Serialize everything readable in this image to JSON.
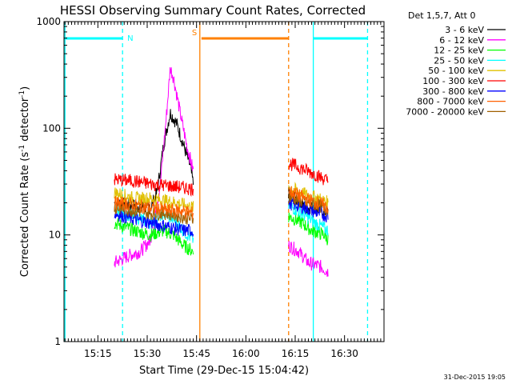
{
  "chart_data": {
    "type": "line",
    "title": "HESSI Observing Summary Count Rates, Corrected",
    "xlabel": "Start Time (29-Dec-15 15:04:42)",
    "ylabel": "Corrected Count Rate (s⁻¹ detector⁻¹)",
    "ylabel_main": "Corrected Count Rate (s",
    "ylabel_mid": " detector",
    "ylabel_end": ")",
    "ylabel_sup": "-1",
    "yscale": "log",
    "ylim": [
      1,
      1000
    ],
    "xlim": [
      "15:04:42",
      "16:42:00"
    ],
    "x_ticks": [
      "15:15",
      "15:30",
      "15:45",
      "16:00",
      "16:15",
      "16:30"
    ],
    "y_ticks": [
      "1",
      "10",
      "100",
      "1000"
    ],
    "legend_header": "Det 1,5,7, Att 0",
    "legend_position": "right, outside plot",
    "timestamp": "31-Dec-2015 19:05",
    "flags": [
      {
        "label": "N",
        "color": "#00ffff",
        "segments": [
          [
            "15:04:42",
            "15:22:30"
          ],
          [
            "16:20:30",
            "16:37:00"
          ]
        ]
      },
      {
        "label": "S",
        "color": "#ff8000",
        "segments": [
          [
            "15:46:30",
            "16:13:00"
          ]
        ]
      }
    ],
    "vertical_lines": [
      {
        "time": "15:05:00",
        "color": "#00ffff",
        "style": "solid"
      },
      {
        "time": "15:22:30",
        "color": "#00ffff",
        "style": "dashed"
      },
      {
        "time": "15:46:00",
        "color": "#ff8000",
        "style": "solid"
      },
      {
        "time": "16:13:00",
        "color": "#ff8000",
        "style": "dashed"
      },
      {
        "time": "16:20:30",
        "color": "#00ffff",
        "style": "solid"
      },
      {
        "time": "16:37:00",
        "color": "#00ffff",
        "style": "dashed"
      }
    ],
    "series": [
      {
        "name": "3 - 6 keV",
        "color": "#000000",
        "seg1": [
          [
            "15:20",
            20
          ],
          [
            "15:26",
            19
          ],
          [
            "15:31",
            18
          ],
          [
            "15:33",
            25
          ],
          [
            "15:35",
            70
          ],
          [
            "15:37",
            140
          ],
          [
            "15:39",
            110
          ],
          [
            "15:41",
            70
          ],
          [
            "15:43",
            45
          ],
          [
            "15:44",
            30
          ]
        ],
        "seg2": [
          [
            "16:13",
            25
          ],
          [
            "16:15",
            22
          ],
          [
            "16:18",
            18
          ],
          [
            "16:21",
            18
          ],
          [
            "16:25",
            16
          ]
        ]
      },
      {
        "name": "6 - 12 keV",
        "color": "#ff00ff",
        "seg1": [
          [
            "15:20",
            5.5
          ],
          [
            "15:25",
            6.5
          ],
          [
            "15:28",
            7
          ],
          [
            "15:31",
            9
          ],
          [
            "15:34",
            30
          ],
          [
            "15:36",
            150
          ],
          [
            "15:37",
            370
          ],
          [
            "15:38",
            300
          ],
          [
            "15:40",
            140
          ],
          [
            "15:42",
            70
          ],
          [
            "15:44",
            40
          ]
        ],
        "seg2": [
          [
            "16:13",
            8
          ],
          [
            "16:16",
            7
          ],
          [
            "16:19",
            5.5
          ],
          [
            "16:23",
            5
          ],
          [
            "16:25",
            4.5
          ]
        ]
      },
      {
        "name": "12 - 25 keV",
        "color": "#00ff00",
        "seg1": [
          [
            "15:20",
            13
          ],
          [
            "15:26",
            11
          ],
          [
            "15:31",
            10
          ],
          [
            "15:35",
            11
          ],
          [
            "15:38",
            10
          ],
          [
            "15:41",
            8
          ],
          [
            "15:44",
            7
          ]
        ],
        "seg2": [
          [
            "16:13",
            15
          ],
          [
            "16:17",
            13
          ],
          [
            "16:20",
            11
          ],
          [
            "16:24",
            10
          ],
          [
            "16:25",
            9
          ]
        ]
      },
      {
        "name": "25 - 50 keV",
        "color": "#00ffff",
        "seg1": [
          [
            "15:20",
            17
          ],
          [
            "15:26",
            15
          ],
          [
            "15:31",
            13
          ],
          [
            "15:35",
            16
          ],
          [
            "15:38",
            14
          ],
          [
            "15:41",
            11
          ],
          [
            "15:44",
            9
          ]
        ],
        "seg2": [
          [
            "16:13",
            19
          ],
          [
            "16:17",
            16
          ],
          [
            "16:21",
            13
          ],
          [
            "16:25",
            11
          ]
        ]
      },
      {
        "name": "50 - 100 keV",
        "color": "#e0c000",
        "seg1": [
          [
            "15:20",
            25
          ],
          [
            "15:26",
            22
          ],
          [
            "15:31",
            22
          ],
          [
            "15:35",
            21
          ],
          [
            "15:39",
            20
          ],
          [
            "15:44",
            18
          ]
        ],
        "seg2": [
          [
            "16:13",
            28
          ],
          [
            "16:18",
            24
          ],
          [
            "16:22",
            22
          ],
          [
            "16:25",
            20
          ]
        ]
      },
      {
        "name": "100 - 300 keV",
        "color": "#ff0000",
        "seg1": [
          [
            "15:20",
            33
          ],
          [
            "15:26",
            32
          ],
          [
            "15:31",
            30
          ],
          [
            "15:36",
            29
          ],
          [
            "15:40",
            28
          ],
          [
            "15:44",
            27
          ]
        ],
        "seg2": [
          [
            "16:13",
            47
          ],
          [
            "16:17",
            42
          ],
          [
            "16:21",
            37
          ],
          [
            "16:25",
            32
          ]
        ]
      },
      {
        "name": "300 - 800 keV",
        "color": "#0000ff",
        "seg1": [
          [
            "15:20",
            16
          ],
          [
            "15:26",
            14
          ],
          [
            "15:31",
            13
          ],
          [
            "15:36",
            12
          ],
          [
            "15:41",
            11
          ],
          [
            "15:44",
            11
          ]
        ],
        "seg2": [
          [
            "16:13",
            20
          ],
          [
            "16:18",
            18
          ],
          [
            "16:22",
            16
          ],
          [
            "16:25",
            15
          ]
        ]
      },
      {
        "name": "800 - 7000 keV",
        "color": "#ff6000",
        "seg1": [
          [
            "15:20",
            20
          ],
          [
            "15:26",
            19
          ],
          [
            "15:31",
            18
          ],
          [
            "15:36",
            17
          ],
          [
            "15:40",
            17
          ],
          [
            "15:44",
            16
          ]
        ],
        "seg2": [
          [
            "16:13",
            26
          ],
          [
            "16:18",
            22
          ],
          [
            "16:22",
            20
          ],
          [
            "16:25",
            18
          ]
        ]
      },
      {
        "name": "7000 - 20000 keV",
        "color": "#a06000",
        "seg1": [
          [
            "15:20",
            18
          ],
          [
            "15:26",
            17
          ],
          [
            "15:31",
            16
          ],
          [
            "15:36",
            16
          ],
          [
            "15:40",
            15
          ],
          [
            "15:44",
            14
          ]
        ],
        "seg2": [
          [
            "16:13",
            23
          ],
          [
            "16:18",
            20
          ],
          [
            "16:22",
            19
          ],
          [
            "16:25",
            17
          ]
        ]
      }
    ]
  }
}
